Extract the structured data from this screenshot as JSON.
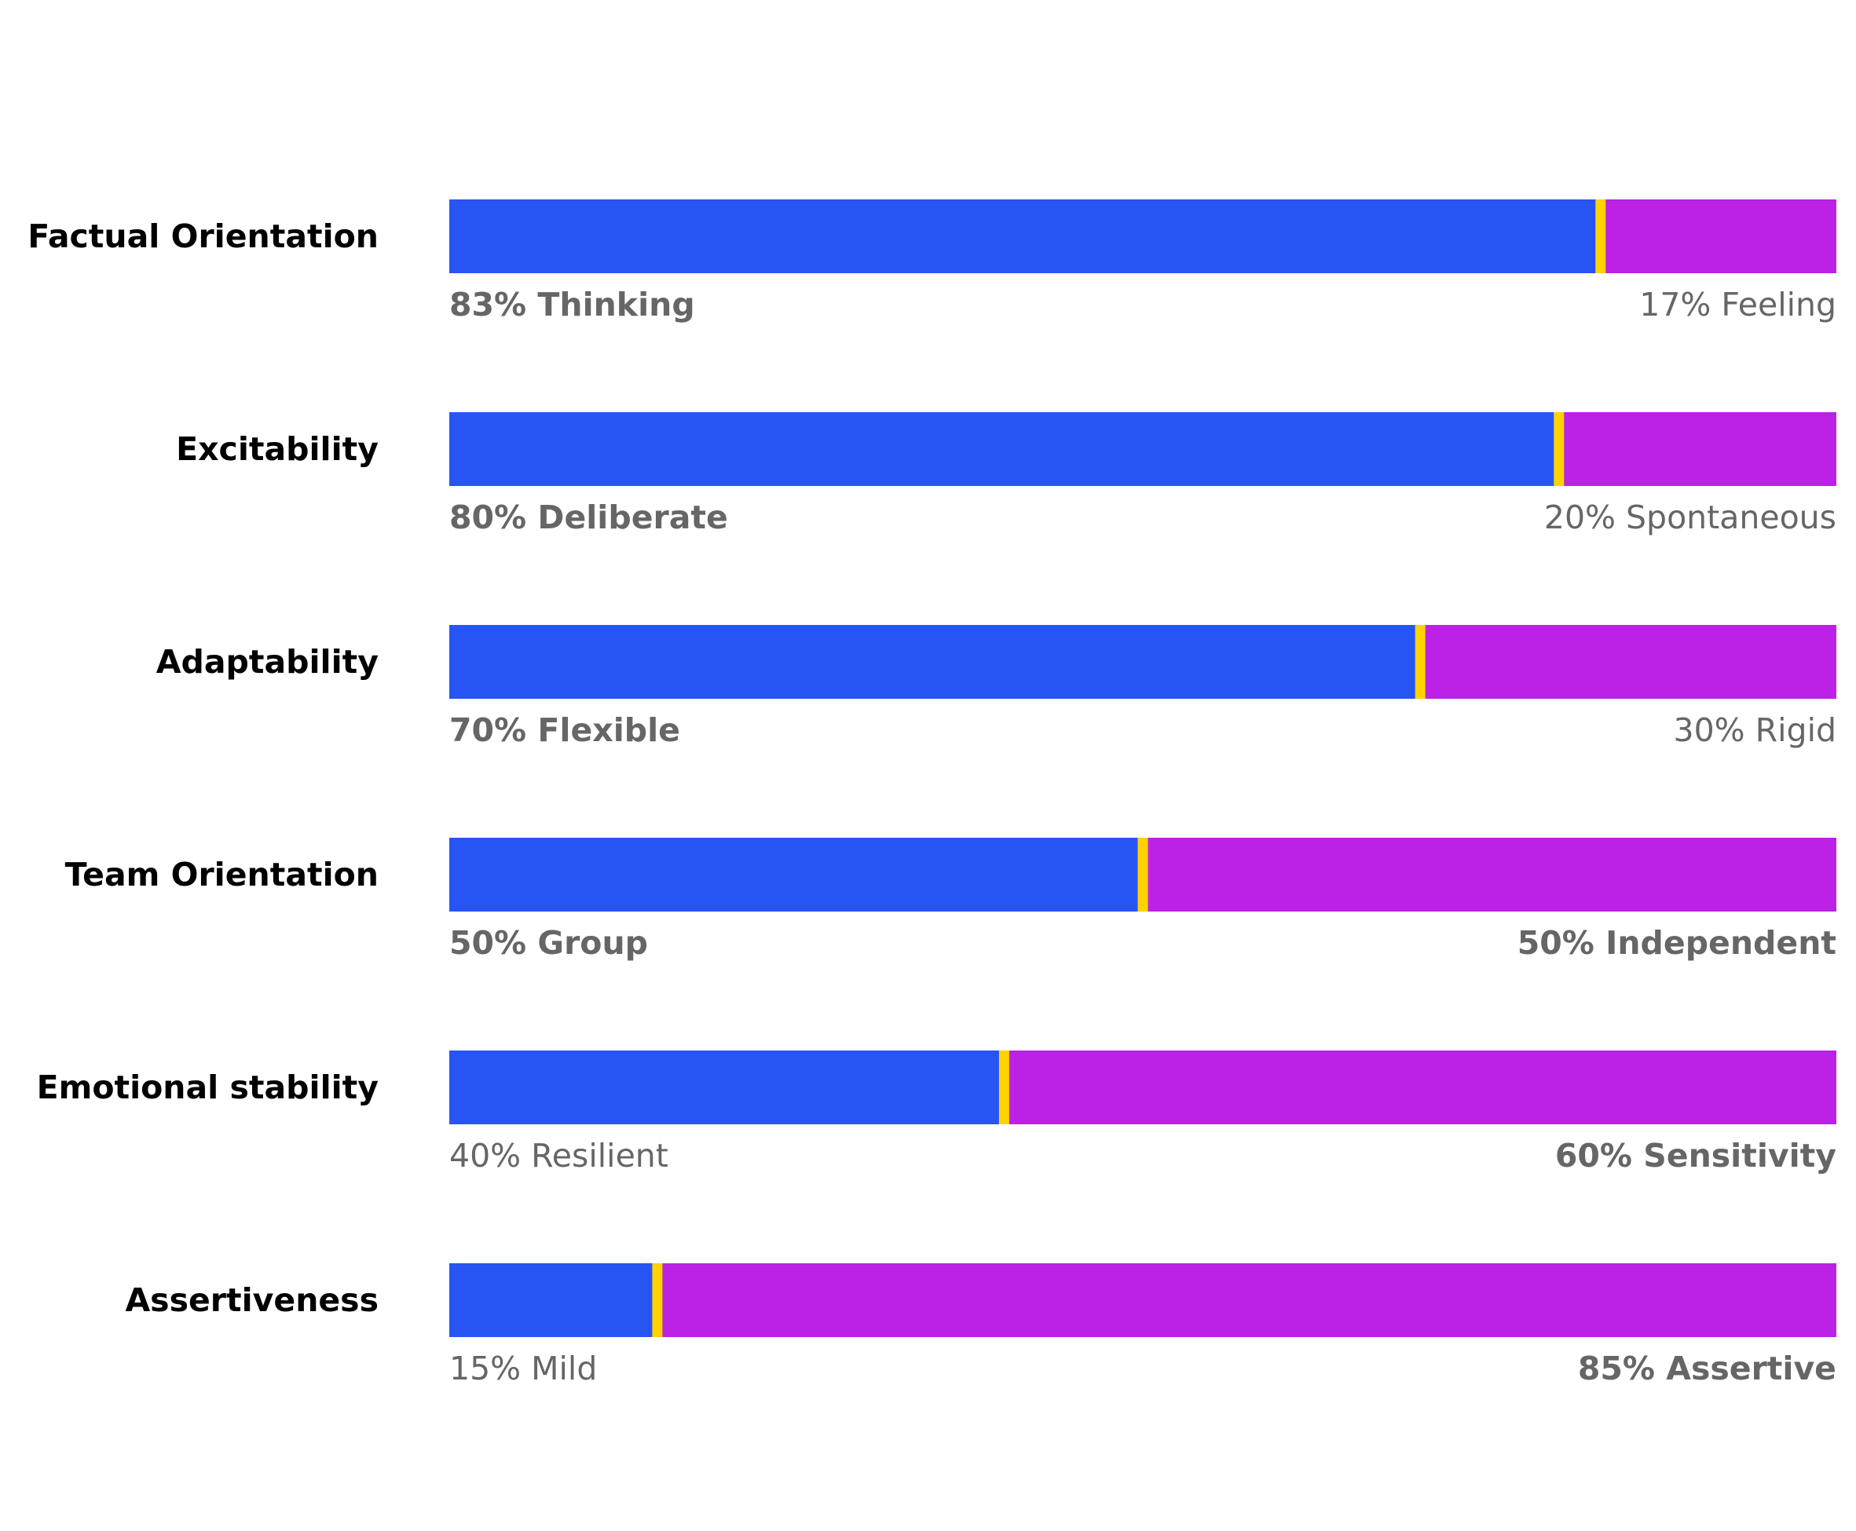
{
  "chart_data": {
    "type": "bar",
    "subtype": "stacked-horizontal-percent",
    "title": "",
    "xlim": [
      0,
      100
    ],
    "grid": false,
    "colors": {
      "left": "#2755F4",
      "right": "#BB22E6",
      "marker": "#FFD200",
      "trait_label": "#000000",
      "percent_label": "#666666"
    },
    "rows": [
      {
        "trait": "Factual Orientation",
        "left_label": "83% Thinking",
        "right_label": "17% Feeling",
        "left_value": 83,
        "right_value": 17,
        "bold": "left"
      },
      {
        "trait": "Excitability",
        "left_label": "80% Deliberate",
        "right_label": "20% Spontaneous",
        "left_value": 80,
        "right_value": 20,
        "bold": "left"
      },
      {
        "trait": "Adaptability",
        "left_label": "70% Flexible",
        "right_label": "30% Rigid",
        "left_value": 70,
        "right_value": 30,
        "bold": "left"
      },
      {
        "trait": "Team Orientation",
        "left_label": "50% Group",
        "right_label": "50% Independent",
        "left_value": 50,
        "right_value": 50,
        "bold": "both"
      },
      {
        "trait": "Emotional stability",
        "left_label": "40% Resilient",
        "right_label": "60% Sensitivity",
        "left_value": 40,
        "right_value": 60,
        "bold": "right"
      },
      {
        "trait": "Assertiveness",
        "left_label": "15% Mild",
        "right_label": "85% Assertive",
        "left_value": 15,
        "right_value": 85,
        "bold": "right"
      }
    ]
  }
}
